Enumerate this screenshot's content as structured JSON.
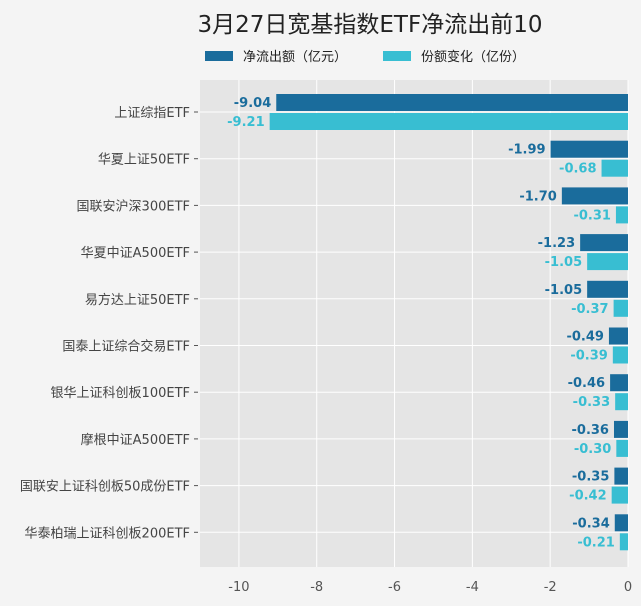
{
  "chart_data": {
    "type": "bar",
    "orientation": "horizontal",
    "title": "3月27日宽基指数ETF净流出前10",
    "categories": [
      "上证综指ETF",
      "华夏上证50ETF",
      "国联安沪深300ETF",
      "华夏中证A500ETF",
      "易方达上证50ETF",
      "国泰上证综合交易ETF",
      "银华上证科创板100ETF",
      "摩根中证A500ETF",
      "国联安上证科创板50成份ETF",
      "华泰柏瑞上证科创板200ETF"
    ],
    "series": [
      {
        "name": "净流出额（亿元）",
        "color": "#1a6c9c",
        "values": [
          -9.04,
          -1.99,
          -1.7,
          -1.23,
          -1.05,
          -0.49,
          -0.46,
          -0.36,
          -0.35,
          -0.34
        ],
        "labels": [
          "-9.04",
          "-1.99",
          "-1.70",
          "-1.23",
          "-1.05",
          "-0.49",
          "-0.46",
          "-0.36",
          "-0.35",
          "-0.34"
        ]
      },
      {
        "name": "份额变化（亿份）",
        "color": "#38bed2",
        "values": [
          -9.21,
          -0.68,
          -0.31,
          -1.05,
          -0.37,
          -0.39,
          -0.33,
          -0.3,
          -0.42,
          -0.21
        ],
        "labels": [
          "-9.21",
          "-0.68",
          "-0.31",
          "-1.05",
          "-0.37",
          "-0.39",
          "-0.33",
          "-0.30",
          "-0.42",
          "-0.21"
        ]
      }
    ],
    "xlim": [
      -11,
      0
    ],
    "xticks": [
      -10,
      -8,
      -6,
      -4,
      -2,
      0
    ],
    "xtick_labels": [
      "-10",
      "-8",
      "-6",
      "-4",
      "-2",
      "0"
    ],
    "xlabel": "",
    "ylabel": "",
    "grid": true,
    "legend": "top"
  }
}
